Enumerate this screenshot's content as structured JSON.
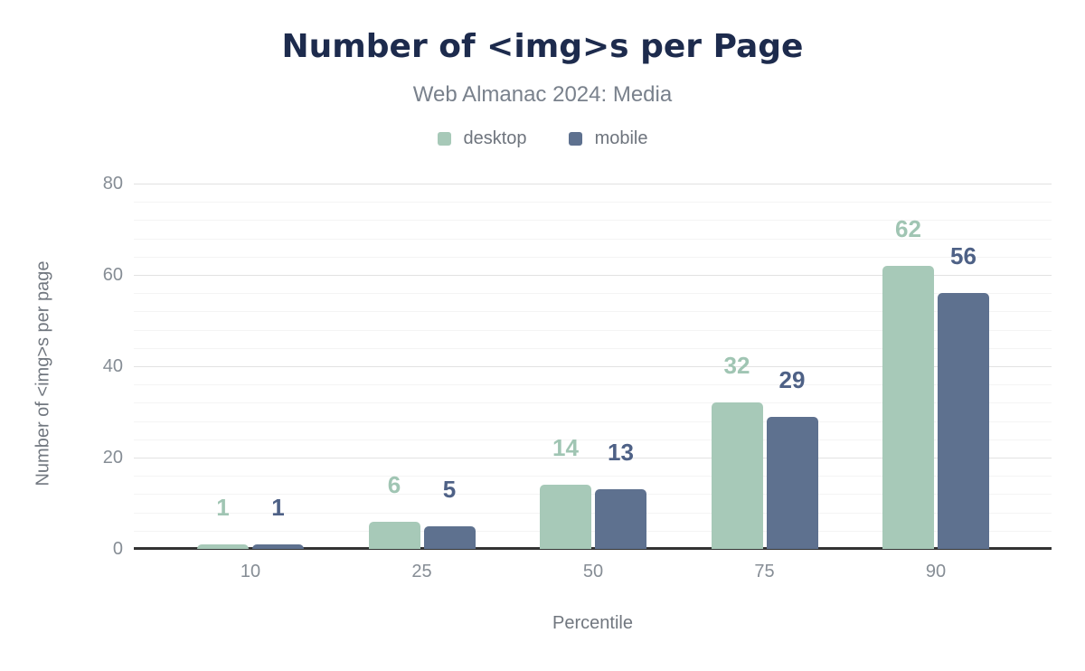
{
  "page": {
    "background": "#ffffff"
  },
  "header": {
    "title": "Number of <img>s per Page",
    "subtitle": "Web Almanac 2024: Media",
    "title_color": "#1d2b4d",
    "subtitle_color": "#79818c"
  },
  "legend": {
    "items": [
      {
        "label": "desktop",
        "color": "#a7c9b8"
      },
      {
        "label": "mobile",
        "color": "#5e718f"
      }
    ],
    "text_color": "#6e747d"
  },
  "chart_data": {
    "type": "bar",
    "title": "Number of <img>s per Page",
    "subtitle": "Web Almanac 2024: Media",
    "categories": [
      "10",
      "25",
      "50",
      "75",
      "90"
    ],
    "series": [
      {
        "name": "desktop",
        "color": "#a7c9b8",
        "label_color": "#a0c5b3",
        "values": [
          1,
          6,
          14,
          32,
          62
        ]
      },
      {
        "name": "mobile",
        "color": "#5e718f",
        "label_color": "#4e6186",
        "values": [
          1,
          5,
          13,
          29,
          56
        ]
      }
    ],
    "xlabel": "Percentile",
    "ylabel": "Number of <img>s per page",
    "ylim": [
      0,
      80
    ],
    "y_ticks": [
      0,
      20,
      40,
      60,
      80
    ],
    "y_minor_step": 4,
    "y_major_step": 20,
    "grid": true,
    "data_labels": true,
    "legend_position": "top",
    "axis_color": "#333333",
    "major_grid_color": "#e2e2e2",
    "minor_grid_color": "#f4f4f4",
    "tick_label_color": "#868d95",
    "axis_title_color": "#71777f"
  }
}
